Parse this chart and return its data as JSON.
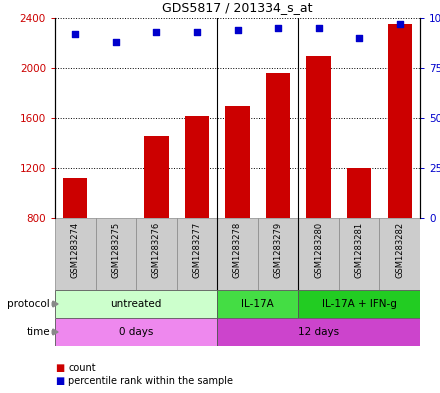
{
  "title": "GDS5817 / 201334_s_at",
  "samples": [
    "GSM1283274",
    "GSM1283275",
    "GSM1283276",
    "GSM1283277",
    "GSM1283278",
    "GSM1283279",
    "GSM1283280",
    "GSM1283281",
    "GSM1283282"
  ],
  "counts": [
    1120,
    780,
    1460,
    1620,
    1700,
    1960,
    2100,
    1200,
    2350
  ],
  "percentiles": [
    92,
    88,
    93,
    93,
    94,
    95,
    95,
    90,
    97
  ],
  "ylim_left": [
    800,
    2400
  ],
  "ylim_right": [
    0,
    100
  ],
  "yticks_left": [
    800,
    1200,
    1600,
    2000,
    2400
  ],
  "yticks_right": [
    0,
    25,
    50,
    75,
    100
  ],
  "bar_color": "#cc0000",
  "dot_color": "#0000cc",
  "protocol_groups": [
    {
      "label": "untreated",
      "start": 0,
      "end": 4,
      "color": "#ccffcc"
    },
    {
      "label": "IL-17A",
      "start": 4,
      "end": 6,
      "color": "#44dd44"
    },
    {
      "label": "IL-17A + IFN-g",
      "start": 6,
      "end": 9,
      "color": "#22cc22"
    }
  ],
  "time_groups": [
    {
      "label": "0 days",
      "start": 0,
      "end": 4,
      "color": "#ee88ee"
    },
    {
      "label": "12 days",
      "start": 4,
      "end": 9,
      "color": "#cc44cc"
    }
  ],
  "legend_items": [
    {
      "label": "count",
      "color": "#cc0000"
    },
    {
      "label": "percentile rank within the sample",
      "color": "#0000cc"
    }
  ],
  "protocol_label": "protocol",
  "time_label": "time",
  "bar_bottom": 800,
  "sample_box_color": "#cccccc",
  "group_sep": [
    3.5,
    5.5
  ]
}
